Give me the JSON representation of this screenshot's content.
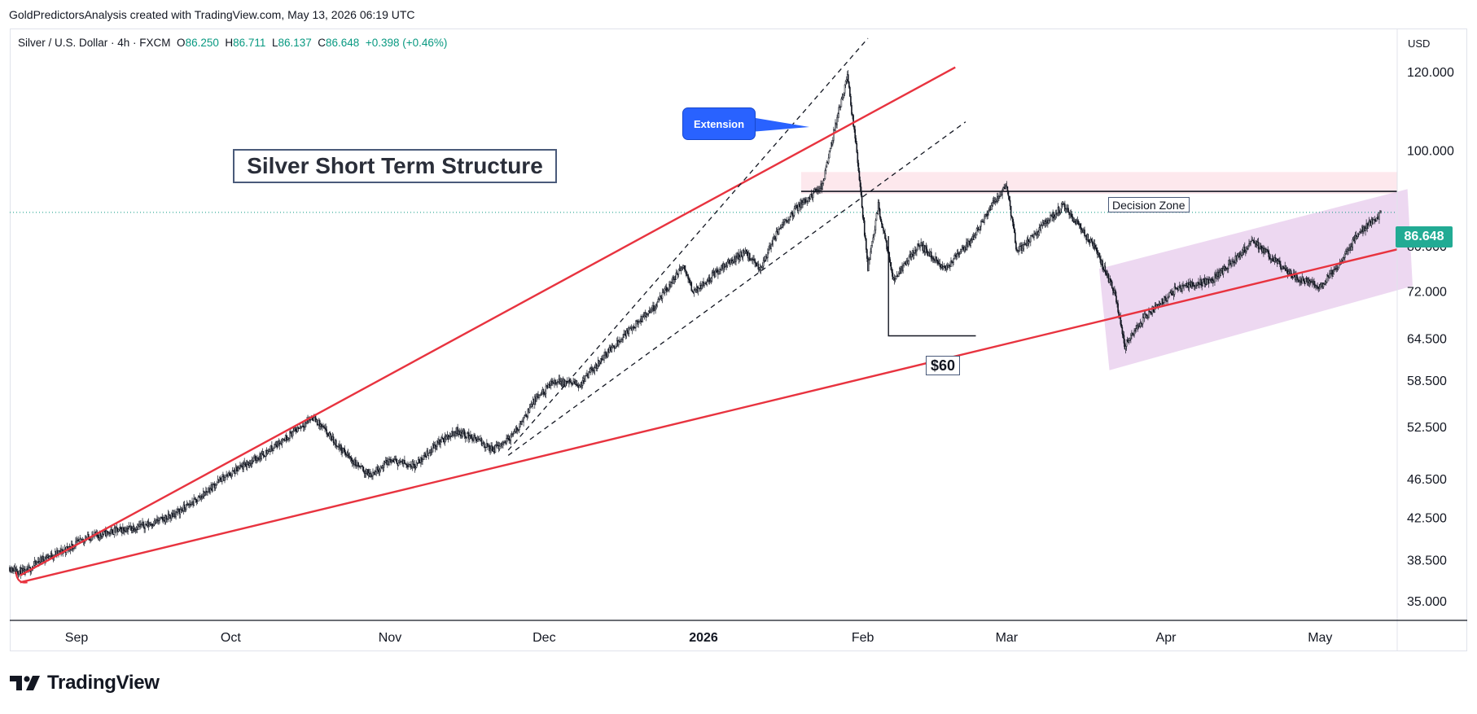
{
  "header": {
    "attribution": "GoldPredictorsAnalysis created with TradingView.com, May 13, 2026 06:19 UTC"
  },
  "legend": {
    "symbol": "Silver / U.S. Dollar · 4h · FXCM",
    "open_label": "O",
    "open": "86.250",
    "high_label": "H",
    "high": "86.711",
    "low_label": "L",
    "low": "86.137",
    "close_label": "C",
    "close": "86.648",
    "change": "+0.398 (+0.46%)"
  },
  "currency": "USD",
  "logo": {
    "text": "TradingView"
  },
  "colors": {
    "up": "#089981",
    "trendline": "#e8333f",
    "channel_fill": "#e1bee7",
    "decision_zone_fill": "#fde4ea",
    "price_badge": "#22ab94",
    "callout": "#2962ff"
  },
  "chart_data": {
    "type": "candlestick",
    "title": "",
    "xlabel": "",
    "ylabel": "",
    "y_scale": "log",
    "ylim": [
      33.5,
      133
    ],
    "x_start": "2025-08-19",
    "x_end": "2026-05-16",
    "x_ticks": [
      {
        "date": "2025-09-01",
        "label": "Sep",
        "bold": false
      },
      {
        "date": "2025-10-01",
        "label": "Oct",
        "bold": false
      },
      {
        "date": "2025-11-01",
        "label": "Nov",
        "bold": false
      },
      {
        "date": "2025-12-01",
        "label": "Dec",
        "bold": false
      },
      {
        "date": "2026-01-01",
        "label": "2026",
        "bold": true
      },
      {
        "date": "2026-02-01",
        "label": "Feb",
        "bold": false
      },
      {
        "date": "2026-03-01",
        "label": "Mar",
        "bold": false
      },
      {
        "date": "2026-04-01",
        "label": "Apr",
        "bold": false
      },
      {
        "date": "2026-05-01",
        "label": "May",
        "bold": false
      }
    ],
    "y_ticks": [
      {
        "value": 35,
        "label": "35.000"
      },
      {
        "value": 38.5,
        "label": "38.500"
      },
      {
        "value": 42.5,
        "label": "42.500"
      },
      {
        "value": 46.5,
        "label": "46.500"
      },
      {
        "value": 52.5,
        "label": "52.500"
      },
      {
        "value": 58.5,
        "label": "58.500"
      },
      {
        "value": 64.5,
        "label": "64.500"
      },
      {
        "value": 72,
        "label": "72.000"
      },
      {
        "value": 80,
        "label": "80.000"
      },
      {
        "value": 100,
        "label": "100.000"
      },
      {
        "value": 120,
        "label": "120.000"
      }
    ],
    "last_price": {
      "value": 86.648,
      "label": "86.648"
    },
    "price_path": [
      [
        "2025-08-19",
        37.9
      ],
      [
        "2025-08-22",
        37.4
      ],
      [
        "2025-08-25",
        38.6
      ],
      [
        "2025-08-29",
        39.3
      ],
      [
        "2025-09-03",
        40.6
      ],
      [
        "2025-09-08",
        41.2
      ],
      [
        "2025-09-15",
        41.9
      ],
      [
        "2025-09-19",
        42.6
      ],
      [
        "2025-09-24",
        44.2
      ],
      [
        "2025-09-29",
        46.5
      ],
      [
        "2025-10-03",
        47.8
      ],
      [
        "2025-10-08",
        49.6
      ],
      [
        "2025-10-13",
        51.9
      ],
      [
        "2025-10-17",
        53.8
      ],
      [
        "2025-10-21",
        50.9
      ],
      [
        "2025-10-25",
        48.4
      ],
      [
        "2025-10-28",
        47.0
      ],
      [
        "2025-11-01",
        48.6
      ],
      [
        "2025-11-06",
        48.1
      ],
      [
        "2025-11-10",
        50.5
      ],
      [
        "2025-11-14",
        52.1
      ],
      [
        "2025-11-18",
        51.0
      ],
      [
        "2025-11-21",
        49.8
      ],
      [
        "2025-11-25",
        51.6
      ],
      [
        "2025-11-29",
        55.8
      ],
      [
        "2025-12-03",
        58.5
      ],
      [
        "2025-12-08",
        58.0
      ],
      [
        "2025-12-12",
        61.5
      ],
      [
        "2025-12-17",
        65.5
      ],
      [
        "2025-12-22",
        69.0
      ],
      [
        "2025-12-28",
        76.5
      ],
      [
        "2025-12-30",
        72.0
      ],
      [
        "2026-01-05",
        76.5
      ],
      [
        "2026-01-09",
        79.0
      ],
      [
        "2026-01-12",
        76.0
      ],
      [
        "2026-01-16",
        84.0
      ],
      [
        "2026-01-20",
        88.5
      ],
      [
        "2026-01-24",
        92.0
      ],
      [
        "2026-01-27",
        108.0
      ],
      [
        "2026-01-29",
        119.0
      ],
      [
        "2026-01-31",
        98.0
      ],
      [
        "2026-02-02",
        76.0
      ],
      [
        "2026-02-04",
        88.0
      ],
      [
        "2026-02-07",
        74.0
      ],
      [
        "2026-02-12",
        80.5
      ],
      [
        "2026-02-17",
        76.0
      ],
      [
        "2026-02-22",
        81.0
      ],
      [
        "2026-02-26",
        88.0
      ],
      [
        "2026-03-01",
        92.0
      ],
      [
        "2026-03-03",
        79.0
      ],
      [
        "2026-03-08",
        84.0
      ],
      [
        "2026-03-12",
        88.0
      ],
      [
        "2026-03-18",
        80.0
      ],
      [
        "2026-03-22",
        72.0
      ],
      [
        "2026-03-24",
        63.5
      ],
      [
        "2026-03-28",
        68.0
      ],
      [
        "2026-04-03",
        72.5
      ],
      [
        "2026-04-10",
        74.0
      ],
      [
        "2026-04-18",
        81.0
      ],
      [
        "2026-04-26",
        74.5
      ],
      [
        "2026-05-01",
        73.0
      ],
      [
        "2026-05-05",
        77.0
      ],
      [
        "2026-05-08",
        82.0
      ],
      [
        "2026-05-13",
        86.6
      ]
    ],
    "overlays": {
      "upper_wedge_line": [
        [
          "2025-08-21",
          37.2
        ],
        [
          "2026-02-19",
          121.5
        ]
      ],
      "lower_wedge_line": [
        [
          "2025-08-21",
          36.6
        ],
        [
          "2026-05-16",
          79.5
        ]
      ],
      "channel_dashed_upper": [
        [
          "2025-11-24",
          49.8
        ],
        [
          "2026-02-02",
          130.0
        ]
      ],
      "channel_dashed_lower": [
        [
          "2025-11-24",
          49.2
        ],
        [
          "2026-02-21",
          107.0
        ]
      ],
      "decision_zone": {
        "from": "2026-01-20",
        "to": "2026-05-16",
        "low": 90.5,
        "high": 95.2,
        "line": 91.0
      },
      "pink_channel": [
        [
          "2026-03-19",
          76.0
        ],
        [
          "2026-05-18",
          91.5
        ],
        [
          "2026-05-19",
          73.0
        ],
        [
          "2026-03-21",
          60.0
        ]
      ],
      "support_60": {
        "from": "2026-02-06",
        "to": "2026-02-23",
        "value": 65.0
      }
    },
    "annotations": {
      "title": "Silver Short Term Structure",
      "extension": "Extension",
      "decision_zone": "Decision Zone",
      "support": "$60"
    }
  }
}
